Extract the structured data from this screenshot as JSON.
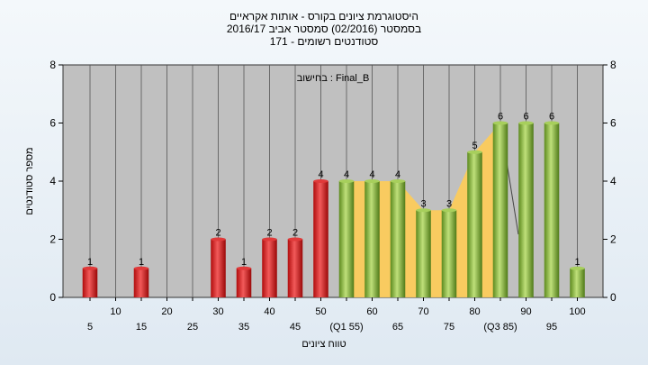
{
  "chart_data": {
    "type": "bar",
    "title_lines": [
      "היסטוגרמת ציונים בקורס - אותות אקראיים",
      "בסמסטר  (02/2016)  סמסטר אביב 2016/17",
      "סטודנטים רשומים - 171"
    ],
    "annotation": "בחישוב : Final_B",
    "xlabel": "טווח ציונים",
    "ylabel": "מספר סטודנטים",
    "ylim": [
      0,
      8
    ],
    "yticks": [
      0,
      2,
      4,
      6,
      8
    ],
    "grid": true,
    "x_tick_labels": [
      "5",
      "10",
      "15",
      "20",
      "25",
      "30",
      "35",
      "40",
      "45",
      "50",
      "(Q1 55)",
      "60",
      "65",
      "70",
      "75",
      "80",
      "(Q3 85)",
      "90",
      "95",
      "100"
    ],
    "series": [
      {
        "values": [
          1,
          0,
          1,
          0,
          0,
          2,
          1,
          2,
          2,
          4,
          4,
          4,
          4,
          3,
          3,
          5,
          6,
          6,
          6,
          1
        ],
        "colors": [
          "red",
          "red",
          "red",
          "red",
          "red",
          "red",
          "red",
          "red",
          "red",
          "red",
          "green",
          "green",
          "green",
          "green",
          "green",
          "green",
          "green",
          "green",
          "green",
          "green"
        ]
      }
    ],
    "interquartile_band": {
      "from": "(Q1 55)",
      "to": "(Q3 85)"
    },
    "colors": {
      "red_light": "#f25a5a",
      "red_dark": "#b00c0c",
      "green_light": "#bfe07a",
      "green_dark": "#5c8a1e",
      "band": "#ffcc55",
      "plot_bg": "#c0c0c0",
      "grid": "#555555"
    }
  }
}
